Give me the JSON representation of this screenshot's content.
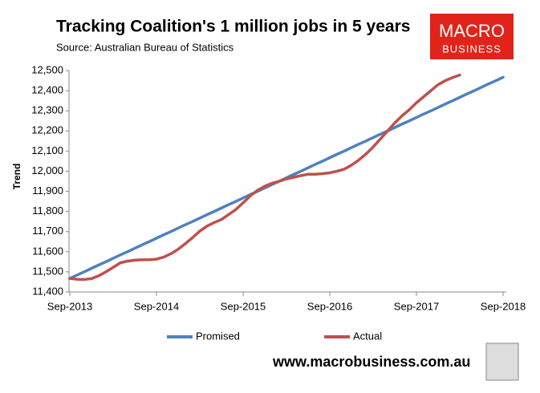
{
  "chart_data": {
    "type": "line",
    "title": "Tracking Coalition's 1 million jobs in 5 years",
    "subtitle": "Source: Australian Bureau of Statistics",
    "y_label": "Trend",
    "logo": {
      "top": "MACRO",
      "bottom": "BUSINESS"
    },
    "footer": "www.macrobusiness.com.au",
    "categories": [
      "Sep-2013",
      null,
      null,
      null,
      null,
      null,
      null,
      null,
      null,
      null,
      null,
      null,
      "Sep-2014",
      null,
      null,
      null,
      null,
      null,
      null,
      null,
      null,
      null,
      null,
      null,
      "Sep-2015",
      null,
      null,
      null,
      null,
      null,
      null,
      null,
      null,
      null,
      null,
      null,
      "Sep-2016",
      null,
      null,
      null,
      null,
      null,
      null,
      null,
      null,
      null,
      null,
      null,
      "Sep-2017",
      null,
      null,
      null,
      null,
      null,
      null,
      null,
      null,
      null,
      null,
      null,
      "Sep-2018"
    ],
    "series": [
      {
        "name": "Promised",
        "color": "#4f81bd",
        "values": [
          11467,
          11484,
          11500,
          11517,
          11534,
          11550,
          11567,
          11584,
          11600,
          11617,
          11634,
          11650,
          11667,
          11684,
          11700,
          11717,
          11734,
          11750,
          11767,
          11784,
          11800,
          11817,
          11834,
          11850,
          11867,
          11884,
          11900,
          11917,
          11934,
          11950,
          11967,
          11984,
          12000,
          12017,
          12034,
          12050,
          12067,
          12084,
          12100,
          12117,
          12134,
          12150,
          12167,
          12184,
          12200,
          12217,
          12234,
          12250,
          12267,
          12284,
          12300,
          12317,
          12334,
          12350,
          12367,
          12384,
          12400,
          12417,
          12434,
          12450,
          12467
        ]
      },
      {
        "name": "Actual",
        "color": "#c0504d",
        "values": [
          11467,
          11463,
          11462,
          11466,
          11480,
          11500,
          11522,
          11545,
          11553,
          11558,
          11560,
          11560,
          11563,
          11573,
          11590,
          11612,
          11640,
          11670,
          11702,
          11727,
          11745,
          11760,
          11785,
          11810,
          11843,
          11878,
          11905,
          11925,
          11940,
          11950,
          11962,
          11970,
          11978,
          11985,
          11985,
          11988,
          11992,
          12000,
          12010,
          12030,
          12055,
          12085,
          12120,
          12160,
          12200,
          12240,
          12275,
          12305,
          12340,
          12370,
          12400,
          12430,
          12450,
          12465,
          12478,
          null,
          null,
          null,
          null,
          null,
          null
        ]
      }
    ],
    "ylim": [
      11400,
      12500
    ],
    "yticks": [
      {
        "value": 11400,
        "label": "11,400"
      },
      {
        "value": 11500,
        "label": "11,500"
      },
      {
        "value": 11600,
        "label": "11,600"
      },
      {
        "value": 11700,
        "label": "11,700"
      },
      {
        "value": 11800,
        "label": "11,800"
      },
      {
        "value": 11900,
        "label": "11,900"
      },
      {
        "value": 12000,
        "label": "12,000"
      },
      {
        "value": 12100,
        "label": "12,100"
      },
      {
        "value": 12200,
        "label": "12,200"
      },
      {
        "value": 12300,
        "label": "12,300"
      },
      {
        "value": 12400,
        "label": "12,400"
      },
      {
        "value": 12500,
        "label": "12,500"
      }
    ],
    "grid": false,
    "legend": "bottom"
  }
}
